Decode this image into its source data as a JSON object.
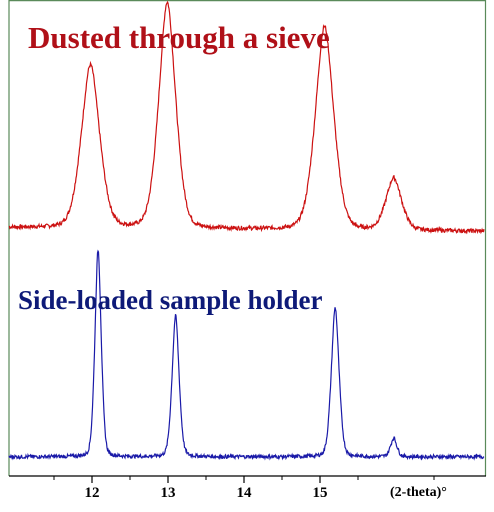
{
  "chart_data": {
    "type": "line",
    "xlabel": "(2-theta)°",
    "xlim": [
      11.1,
      16.7
    ],
    "x_ticks": [
      "12",
      "13",
      "14",
      "15"
    ],
    "x_tick_values": [
      12,
      13,
      14,
      15
    ],
    "grid": false,
    "series": [
      {
        "name": "Dusted through a sieve",
        "color": "#cc1111",
        "text_color": "#b01018",
        "baseline": 0.04,
        "peaks": [
          {
            "x": 11.98,
            "height": 0.72,
            "width": 0.13
          },
          {
            "x": 12.99,
            "height": 1.0,
            "width": 0.12
          },
          {
            "x": 15.06,
            "height": 0.9,
            "width": 0.13
          },
          {
            "x": 15.97,
            "height": 0.23,
            "width": 0.11
          }
        ]
      },
      {
        "name": "Side-loaded sample holder",
        "color": "#1a1aa8",
        "text_color": "#0e1a78",
        "baseline": 0.03,
        "peaks": [
          {
            "x": 12.08,
            "height": 1.0,
            "width": 0.045
          },
          {
            "x": 13.1,
            "height": 0.68,
            "width": 0.05
          },
          {
            "x": 15.2,
            "height": 0.72,
            "width": 0.055
          },
          {
            "x": 15.97,
            "height": 0.09,
            "width": 0.045
          }
        ]
      }
    ]
  }
}
